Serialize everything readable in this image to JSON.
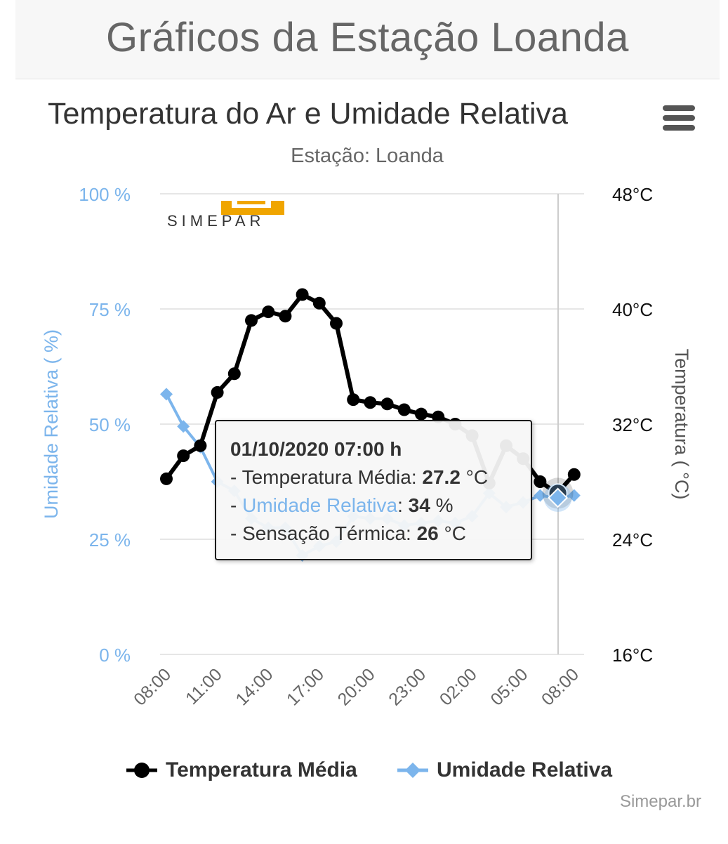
{
  "header": {
    "title": "Gráficos da Estação Loanda"
  },
  "chart_header": {
    "title": "Temperatura do Ar e Umidade Relativa",
    "subtitle": "Estação: Loanda",
    "menu_icon": "hamburger-menu-icon"
  },
  "colors": {
    "temperature": "#000000",
    "humidity": "#7cb5ec",
    "humidity_axis": "#7cb5ec",
    "grid": "#e6e6e6",
    "logo_orange": "#f0a500"
  },
  "logo": {
    "text": "SIMEPAR"
  },
  "tooltip": {
    "date": "01/10/2020 07:00 h",
    "temp_prefix": "- Temperatura Média: ",
    "temp_value": "27.2",
    "temp_unit": " °C",
    "hum_prefix": "- ",
    "hum_label": "Umidade Relativa",
    "hum_sep": ": ",
    "hum_value": "34",
    "hum_unit": " %",
    "feel_prefix": "- Sensação Térmica: ",
    "feel_value": "26",
    "feel_unit": " °C"
  },
  "legend": {
    "temperature_label": "Temperatura Média",
    "humidity_label": "Umidade Relativa"
  },
  "credits": "Simepar.br",
  "chart_data": {
    "type": "line",
    "x_start": "30/09/2020 08:00",
    "x_step_hours": 1,
    "x_ticks": [
      "08:00",
      "11:00",
      "14:00",
      "17:00",
      "20:00",
      "23:00",
      "02:00",
      "05:00",
      "08:00"
    ],
    "series": [
      {
        "name": "Temperatura Média",
        "axis": "right",
        "unit": "°C",
        "marker": "circle",
        "values": [
          28.2,
          29.8,
          30.5,
          34.2,
          35.5,
          39.2,
          39.8,
          39.5,
          41.0,
          40.4,
          39.0,
          33.7,
          33.5,
          33.4,
          33.0,
          32.7,
          32.5,
          32.0,
          31.2,
          27.9,
          30.5,
          29.6,
          28.0,
          27.2,
          28.5
        ]
      },
      {
        "name": "Umidade Relativa",
        "axis": "left",
        "unit": "%",
        "marker": "diamond",
        "values": [
          56.5,
          49.5,
          45.0,
          37.5,
          35.5,
          29.5,
          27.5,
          27.5,
          21.5,
          23.5,
          24.5,
          30.0,
          29.5,
          29.5,
          28.0,
          28.5,
          29.0,
          28.5,
          30.0,
          35.0,
          32.0,
          33.0,
          34.5,
          34.0,
          34.5
        ]
      }
    ],
    "y_left": {
      "label": "Umidade Relativa ( %)",
      "min": 0,
      "max": 100,
      "ticks": [
        "0 %",
        "25 %",
        "50 %",
        "75 %",
        "100 %"
      ]
    },
    "y_right": {
      "label": "Temperatura ( °C)",
      "min": 16,
      "max": 48,
      "ticks": [
        "16°C",
        "24°C",
        "32°C",
        "40°C",
        "48°C"
      ]
    },
    "highlighted_point": "01/10/2020 07:00",
    "grid": true,
    "legend_position": "bottom-center"
  }
}
